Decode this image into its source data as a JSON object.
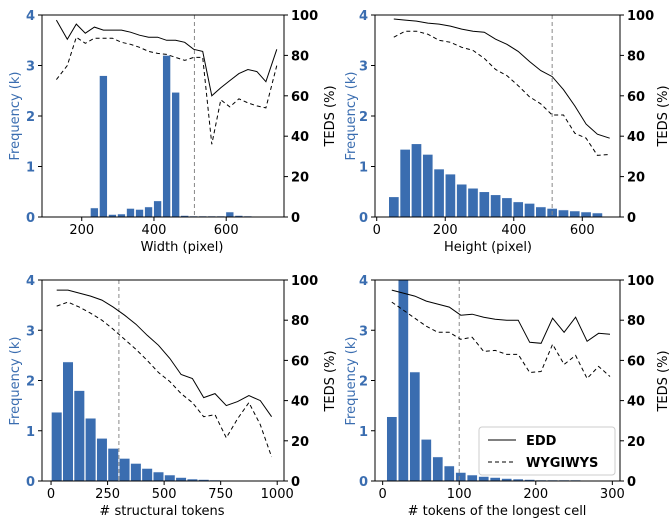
{
  "colors": {
    "bar": "#3a6db0",
    "left_axis": "#3a6db0",
    "edd": "#000000",
    "wygiwys": "#000000",
    "threshold": "#888888"
  },
  "legend": {
    "placement": "lower-right of fourth panel",
    "entries": [
      "EDD",
      "WYGIWYS"
    ]
  },
  "chart_data": [
    {
      "type": "bar",
      "xlabel": "Width (pixel)",
      "ylabel_left": "Frequency (k)",
      "ylabel_right": "TEDS (%)",
      "xlim": [
        90,
        760
      ],
      "xticks": [
        200,
        400,
        600
      ],
      "ylim_left": [
        0,
        4
      ],
      "yticks_left": [
        0,
        1,
        2,
        3,
        4
      ],
      "ylim_right": [
        0,
        100
      ],
      "yticks_right": [
        0,
        20,
        40,
        60,
        80,
        100
      ],
      "threshold_x": 512,
      "bar_width": 22,
      "bars": {
        "x": [
          235,
          260,
          285,
          310,
          335,
          360,
          385,
          410,
          435,
          460,
          485,
          510,
          535,
          560,
          585,
          610,
          635,
          660
        ],
        "values": [
          0.18,
          2.8,
          0.05,
          0.06,
          0.17,
          0.15,
          0.2,
          0.32,
          3.2,
          2.47,
          0.03,
          0.02,
          0.02,
          0.02,
          0.02,
          0.1,
          0.03,
          0.02
        ]
      },
      "series": [
        {
          "name": "EDD",
          "x": [
            130,
            160,
            185,
            210,
            235,
            260,
            285,
            310,
            335,
            360,
            385,
            410,
            435,
            460,
            485,
            510,
            535,
            560,
            585,
            610,
            635,
            660,
            685,
            710,
            740
          ],
          "values": [
            97.5,
            88,
            95.5,
            91,
            94,
            92.5,
            92.5,
            92.5,
            91.5,
            90,
            89,
            89,
            87.5,
            87.5,
            86.5,
            83,
            82,
            60,
            64,
            67.5,
            71,
            73,
            72,
            67,
            83
          ]
        },
        {
          "name": "WYGIWYS",
          "x": [
            130,
            160,
            185,
            210,
            235,
            260,
            285,
            310,
            335,
            360,
            385,
            410,
            435,
            460,
            485,
            510,
            535,
            560,
            585,
            610,
            635,
            660,
            685,
            710,
            740
          ],
          "values": [
            68,
            75,
            89,
            86,
            88.5,
            88.5,
            88.5,
            86.5,
            85.5,
            84,
            82,
            81,
            80.5,
            79,
            77.5,
            79,
            79,
            36,
            58,
            54.5,
            58.5,
            56.5,
            55,
            54,
            75
          ]
        }
      ]
    },
    {
      "type": "bar",
      "xlabel": "Height (pixel)",
      "ylabel_left": "Frequency (k)",
      "ylabel_right": "TEDS (%)",
      "xlim": [
        -5,
        710
      ],
      "xticks": [
        0,
        200,
        400,
        600
      ],
      "ylim_left": [
        0,
        4
      ],
      "yticks_left": [
        0,
        1,
        2,
        3,
        4
      ],
      "ylim_right": [
        0,
        100
      ],
      "yticks_right": [
        0,
        20,
        40,
        60,
        80,
        100
      ],
      "threshold_x": 512,
      "bar_width": 30,
      "bars": {
        "x": [
          50,
          83,
          116,
          149,
          182,
          215,
          248,
          281,
          314,
          347,
          380,
          413,
          446,
          479,
          512,
          545,
          578,
          611,
          644
        ],
        "values": [
          0.4,
          1.34,
          1.45,
          1.24,
          0.95,
          0.85,
          0.65,
          0.57,
          0.5,
          0.44,
          0.38,
          0.3,
          0.27,
          0.2,
          0.17,
          0.14,
          0.12,
          0.1,
          0.08
        ]
      },
      "series": [
        {
          "name": "EDD",
          "x": [
            50,
            83,
            116,
            149,
            182,
            215,
            248,
            281,
            314,
            347,
            380,
            413,
            446,
            479,
            512,
            545,
            578,
            611,
            644,
            680
          ],
          "values": [
            98,
            97.5,
            97,
            96,
            95.5,
            94.5,
            93,
            92,
            91.5,
            88,
            85.5,
            82,
            77,
            72.5,
            69.5,
            63,
            55,
            46,
            41,
            39
          ]
        },
        {
          "name": "WYGIWYS",
          "x": [
            50,
            83,
            116,
            149,
            182,
            215,
            248,
            281,
            314,
            347,
            380,
            413,
            446,
            479,
            512,
            545,
            578,
            611,
            644,
            680
          ],
          "values": [
            89,
            92,
            92,
            90.5,
            87.5,
            86.5,
            84,
            82.5,
            78.5,
            73,
            70,
            65,
            59.5,
            56,
            50.5,
            50.5,
            41.5,
            39,
            30.5,
            31
          ]
        }
      ]
    },
    {
      "type": "bar",
      "xlabel": "# structural tokens",
      "ylabel_left": "Frequency (k)",
      "ylabel_right": "TEDS (%)",
      "xlim": [
        -40,
        1030
      ],
      "xticks": [
        0,
        250,
        500,
        750,
        1000
      ],
      "ylim_left": [
        0,
        4
      ],
      "yticks_left": [
        0,
        1,
        2,
        3,
        4
      ],
      "ylim_right": [
        0,
        100
      ],
      "yticks_right": [
        0,
        20,
        40,
        60,
        80,
        100
      ],
      "threshold_x": 300,
      "bar_width": 47,
      "bars": {
        "x": [
          25,
          75,
          125,
          175,
          225,
          275,
          325,
          375,
          425,
          475,
          525,
          575,
          625,
          675,
          725,
          775,
          825,
          875,
          925,
          975
        ],
        "values": [
          1.37,
          2.37,
          1.8,
          1.25,
          0.85,
          0.65,
          0.45,
          0.35,
          0.25,
          0.18,
          0.12,
          0.07,
          0.04,
          0.03,
          0.02,
          0.01,
          0.01,
          0.01,
          0.01,
          0.01
        ]
      },
      "series": [
        {
          "name": "EDD",
          "x": [
            25,
            75,
            125,
            175,
            225,
            275,
            325,
            375,
            425,
            475,
            525,
            575,
            625,
            675,
            725,
            775,
            825,
            875,
            925,
            975
          ],
          "values": [
            95,
            95,
            93.5,
            92,
            90,
            86.5,
            82.5,
            78,
            72.5,
            67.5,
            61,
            53,
            51,
            41.5,
            43.5,
            37.5,
            39.5,
            42.5,
            40,
            32
          ]
        },
        {
          "name": "WYGIWYS",
          "x": [
            25,
            75,
            125,
            175,
            225,
            275,
            325,
            375,
            425,
            475,
            525,
            575,
            625,
            675,
            725,
            775,
            825,
            875,
            925,
            975
          ],
          "values": [
            87,
            89,
            86.5,
            83.5,
            80,
            75.5,
            70.5,
            65.5,
            60,
            54,
            49.5,
            43.5,
            39,
            32,
            33,
            21.5,
            31,
            39,
            28,
            12
          ]
        }
      ]
    },
    {
      "type": "bar",
      "xlabel": "# tokens of the longest cell",
      "ylabel_left": "Frequency (k)",
      "ylabel_right": "TEDS (%)",
      "xlim": [
        -10,
        310
      ],
      "xticks": [
        0,
        100,
        200,
        300
      ],
      "ylim_left": [
        0,
        4
      ],
      "yticks_left": [
        0,
        1,
        2,
        3,
        4
      ],
      "ylim_right": [
        0,
        100
      ],
      "yticks_right": [
        0,
        20,
        40,
        60,
        80,
        100
      ],
      "threshold_x": 100,
      "bar_width": 13.5,
      "bars": {
        "x": [
          12,
          27,
          42,
          57,
          72,
          87,
          102,
          117,
          132,
          147,
          162,
          177,
          192,
          207,
          222,
          237,
          252,
          267,
          282
        ],
        "values": [
          1.28,
          4.3,
          2.17,
          0.83,
          0.48,
          0.3,
          0.17,
          0.12,
          0.09,
          0.07,
          0.05,
          0.04,
          0.03,
          0.02,
          0.02,
          0.02,
          0.02,
          0.01,
          0.01
        ]
      },
      "series": [
        {
          "name": "EDD",
          "x": [
            12,
            27,
            42,
            57,
            72,
            87,
            102,
            117,
            132,
            147,
            162,
            177,
            192,
            207,
            222,
            237,
            252,
            267,
            282,
            297
          ],
          "values": [
            95,
            93.5,
            92,
            89.5,
            88,
            86.5,
            82.5,
            83,
            81.5,
            80.5,
            80,
            80,
            69,
            68.5,
            81,
            74,
            81.5,
            69.5,
            73.5,
            73
          ]
        },
        {
          "name": "WYGIWYS",
          "x": [
            12,
            27,
            42,
            57,
            72,
            87,
            102,
            117,
            132,
            147,
            162,
            177,
            192,
            207,
            222,
            237,
            252,
            267,
            282,
            297
          ],
          "values": [
            89,
            85,
            81,
            77,
            74,
            74,
            70.5,
            71.5,
            64.5,
            65,
            63,
            63,
            54,
            54.5,
            68,
            58,
            62.5,
            51,
            57,
            52
          ]
        }
      ]
    }
  ]
}
